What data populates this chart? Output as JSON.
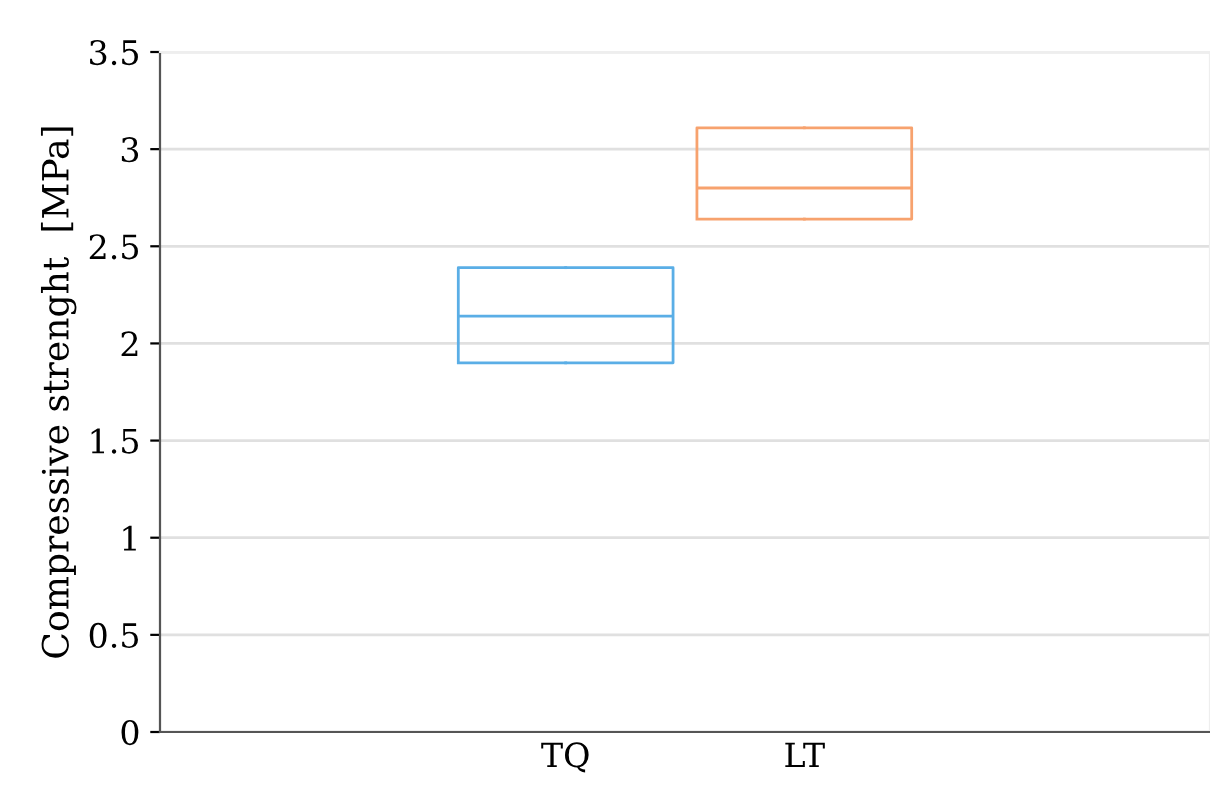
{
  "chart_data": {
    "type": "box",
    "ylabel": "Compressive strenght  [MPa]",
    "categories": [
      "TQ",
      "LT"
    ],
    "series": [
      {
        "color": "#5aaee6",
        "boxes": [
          {
            "low": 1.9,
            "q1": 1.9,
            "median": 2.14,
            "q3": 2.39,
            "high": 2.39
          },
          null
        ]
      },
      {
        "color": "#f7a26e",
        "boxes": [
          null,
          {
            "low": 2.64,
            "q1": 2.64,
            "median": 2.8,
            "q3": 3.11,
            "high": 3.11
          }
        ]
      }
    ],
    "ylim": [
      0,
      3.5
    ],
    "yticks": [
      0,
      0.5,
      1,
      1.5,
      2,
      2.5,
      3,
      3.5
    ],
    "grid": "y"
  }
}
